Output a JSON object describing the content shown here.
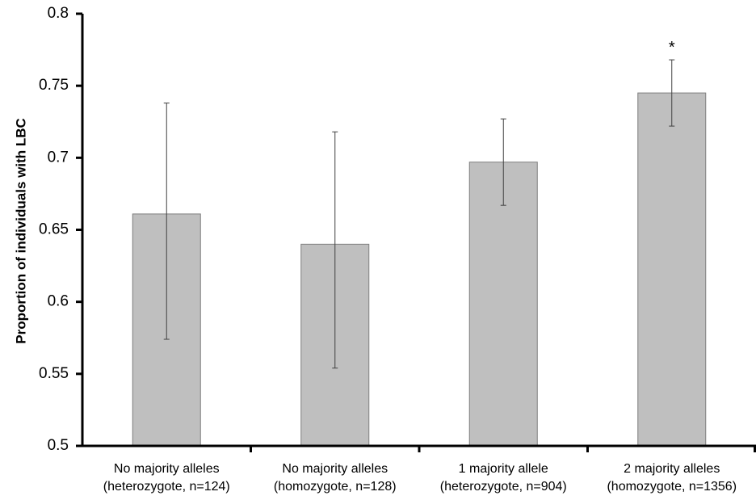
{
  "chart_data": {
    "type": "bar",
    "title": "",
    "xlabel": "",
    "ylabel": "Proportion of individuals with LBC",
    "ylim": [
      0.5,
      0.8
    ],
    "yticks": [
      "0.5",
      "0.55",
      "0.6",
      "0.65",
      "0.7",
      "0.75",
      "0.8"
    ],
    "grid": false,
    "categories": [
      [
        "No majority alleles",
        "(heterozygote, n=124)"
      ],
      [
        "No majority alleles",
        "(homozygote, n=128)"
      ],
      [
        "1 majority allele",
        "(heterozygote, n=904)"
      ],
      [
        "2 majority alleles",
        "(homozygote, n=1356)"
      ]
    ],
    "values": [
      0.661,
      0.64,
      0.697,
      0.745
    ],
    "error_low": [
      0.574,
      0.554,
      0.667,
      0.722
    ],
    "error_high": [
      0.738,
      0.718,
      0.727,
      0.768
    ],
    "annotations": [
      "",
      "",
      "",
      "*"
    ],
    "colors": {
      "bar": "#bfbfbf",
      "bar_edge": "#7f7f7f",
      "axis": "#000000",
      "errorbar": "#404040"
    }
  }
}
